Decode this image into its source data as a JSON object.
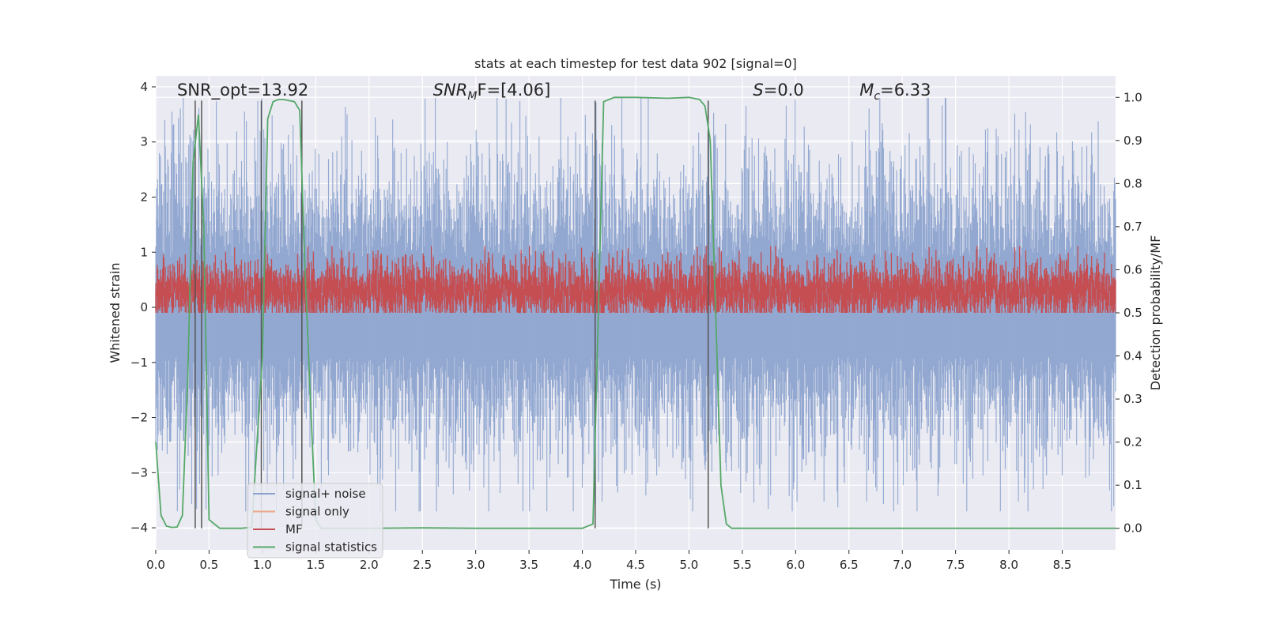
{
  "chart_data": {
    "type": "line",
    "title": "stats at each timestep for test data 902 [signal=0]",
    "xlabel": "Time (s)",
    "ylabel_left": "Whitened strain",
    "ylabel_right": "Detection probability/MF",
    "xlim": [
      0.0,
      9.0
    ],
    "ylim_left": [
      -4.4,
      4.2
    ],
    "ylim_right": [
      -0.05,
      1.05
    ],
    "xticks": [
      "0.0",
      "0.5",
      "1.0",
      "1.5",
      "2.0",
      "2.5",
      "3.0",
      "3.5",
      "4.0",
      "4.5",
      "5.0",
      "5.5",
      "6.0",
      "6.5",
      "7.0",
      "7.5",
      "8.0",
      "8.5"
    ],
    "yticks_left": [
      "4",
      "3",
      "2",
      "1",
      "0",
      "−1",
      "−2",
      "−3",
      "−4"
    ],
    "yticks_left_values": [
      4,
      3,
      2,
      1,
      0,
      -1,
      -2,
      -3,
      -4
    ],
    "yticks_right": [
      "1.0",
      "0.9",
      "0.8",
      "0.7",
      "0.6",
      "0.5",
      "0.4",
      "0.3",
      "0.2",
      "0.1",
      "0.0"
    ],
    "yticks_right_values": [
      1.0,
      0.9,
      0.8,
      0.7,
      0.6,
      0.5,
      0.4,
      0.3,
      0.2,
      0.1,
      0.0
    ],
    "annotations": [
      {
        "prefix": "SNR_opt",
        "sub": "",
        "suffix": "=13.92",
        "x": 0.2,
        "italic": false
      },
      {
        "prefix": "SNR",
        "sub": "M",
        "suffix": "F=[4.06]",
        "x": 2.6,
        "italic": true
      },
      {
        "prefix": "S",
        "sub": "",
        "suffix": "=0.0",
        "x": 5.6,
        "italic": true
      },
      {
        "prefix": "M",
        "sub": "c",
        "suffix": "=6.33",
        "x": 6.6,
        "italic": true
      }
    ],
    "legend": [
      {
        "label": "signal+ noise",
        "color": "#8da4cf"
      },
      {
        "label": "signal only",
        "color": "#e8a88a"
      },
      {
        "label": "MF",
        "color": "#c44e52"
      },
      {
        "label": "signal statistics",
        "color": "#55a868"
      }
    ],
    "series": [
      {
        "name": "signal+ noise",
        "color": "#8da4cf",
        "band_mean": 0.0,
        "band_sd": 1.0,
        "peak_max": 3.8,
        "peak_min": -3.7
      },
      {
        "name": "MF",
        "color": "#c44e52",
        "band_lo": 0.35,
        "band_hi": 0.65,
        "axis": "right"
      },
      {
        "name": "signal statistics",
        "color": "#55a868",
        "axis": "right",
        "x": [
          0.0,
          0.05,
          0.1,
          0.15,
          0.2,
          0.25,
          0.3,
          0.35,
          0.4,
          0.45,
          0.5,
          0.55,
          0.6,
          0.65,
          0.7,
          0.8,
          0.9,
          1.0,
          1.05,
          1.1,
          1.15,
          1.2,
          1.3,
          1.35,
          1.4,
          1.45,
          1.5,
          1.55,
          1.6,
          1.7,
          2.0,
          2.5,
          3.0,
          3.5,
          4.0,
          4.1,
          4.15,
          4.2,
          4.3,
          4.5,
          4.8,
          5.0,
          5.1,
          5.15,
          5.2,
          5.25,
          5.3,
          5.35,
          5.4,
          5.5,
          6.0,
          7.0,
          8.0,
          9.0
        ],
        "y": [
          0.2,
          0.03,
          0.005,
          0.002,
          0.003,
          0.03,
          0.35,
          0.85,
          0.96,
          0.7,
          0.02,
          0.01,
          0.0,
          0.0,
          0.0,
          0.0,
          0.002,
          0.4,
          0.95,
          0.99,
          0.995,
          0.995,
          0.99,
          0.97,
          0.6,
          0.3,
          0.02,
          0.0,
          0.0,
          0.0,
          0.0,
          0.001,
          0.0,
          0.0,
          0.0,
          0.01,
          0.5,
          0.99,
          1.0,
          1.0,
          0.998,
          1.0,
          0.995,
          0.98,
          0.9,
          0.5,
          0.1,
          0.01,
          0.0,
          0.0,
          0.0,
          0.0,
          0.0,
          0.0
        ]
      }
    ],
    "vertical_lines_x": [
      0.37,
      0.43,
      0.99,
      1.37,
      4.12,
      5.18
    ],
    "vline_top_y": 3.75,
    "vline_bottom_y": -4.0,
    "hline_right_y": [
      0.7,
      0.6,
      0.5,
      0.4,
      0.3,
      0.2,
      0.1,
      0.0
    ]
  }
}
